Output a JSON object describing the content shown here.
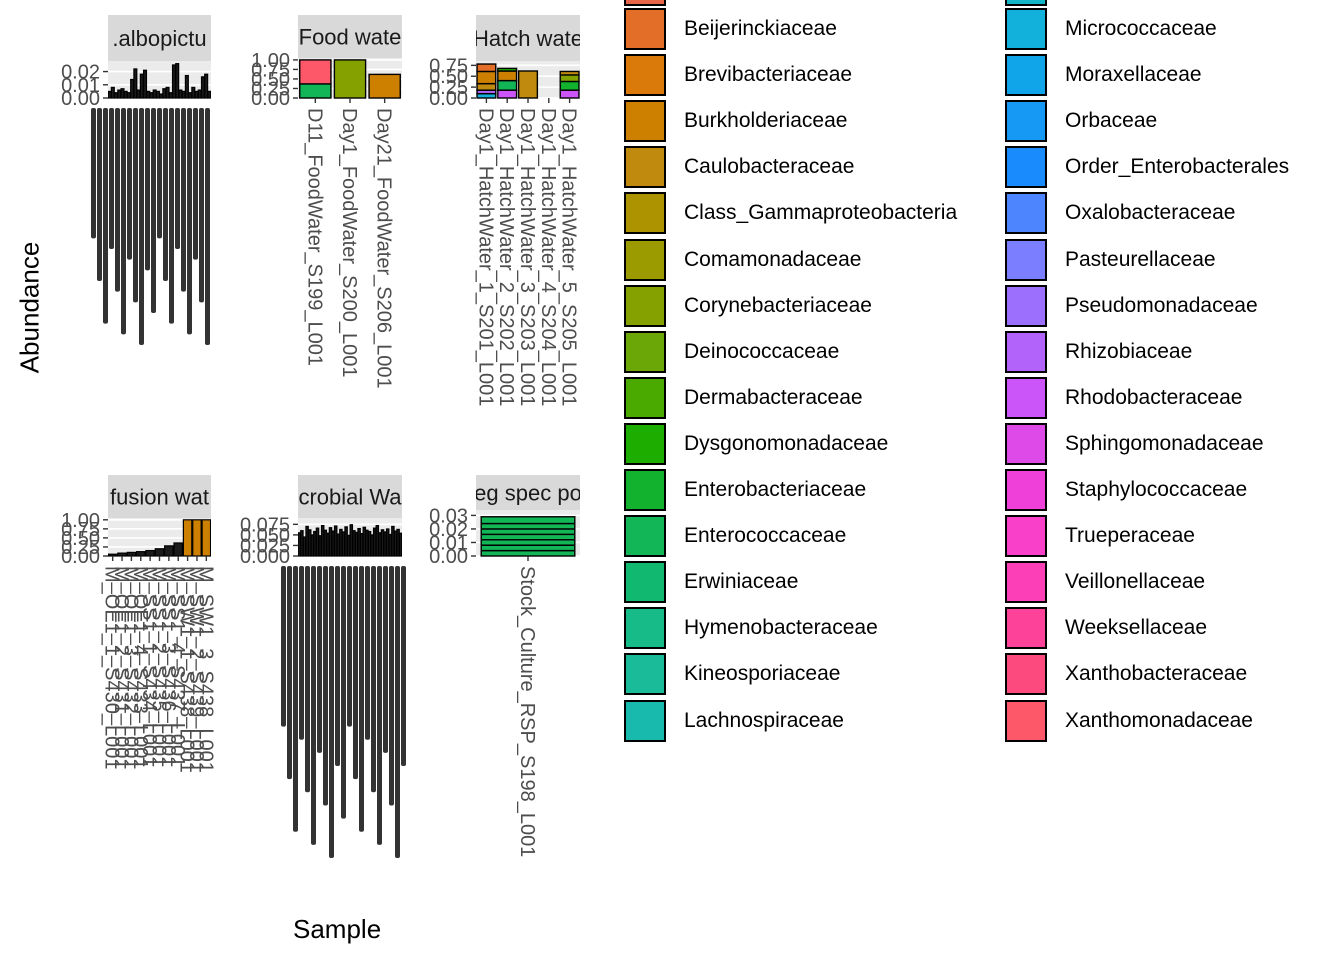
{
  "chart_data": {
    "type": "bar",
    "stacked": true,
    "faceted": true,
    "xlabel": "Sample",
    "ylabel": "Abundance",
    "grid": true,
    "legend_position": "right",
    "legend": [
      {
        "label": "Beijerinckiaceae",
        "color": "#E36E27"
      },
      {
        "label": "Brevibacteriaceae",
        "color": "#D97A0A"
      },
      {
        "label": "Burkholderiaceae",
        "color": "#CD8000"
      },
      {
        "label": "Caulobacteraceae",
        "color": "#BF8A0E"
      },
      {
        "label": "Class_Gammaproteobacteria",
        "color": "#AE9300"
      },
      {
        "label": "Comamonadaceae",
        "color": "#9B9B00"
      },
      {
        "label": "Corynebacteriaceae",
        "color": "#85A100"
      },
      {
        "label": "Deinococcaceae",
        "color": "#6AA707"
      },
      {
        "label": "Dermabacteraceae",
        "color": "#4BAA00"
      },
      {
        "label": "Dysgonomonadaceae",
        "color": "#1CAD00"
      },
      {
        "label": "Enterobacteriaceae",
        "color": "#13B22E"
      },
      {
        "label": "Enterococcaceae",
        "color": "#12B656"
      },
      {
        "label": "Erwiniaceae",
        "color": "#11B970"
      },
      {
        "label": "Hymenobacteraceae",
        "color": "#17BB88"
      },
      {
        "label": "Kineosporiaceae",
        "color": "#1ABB99"
      },
      {
        "label": "Lachnospiraceae",
        "color": "#17BAAD"
      },
      {
        "label": "Micrococcaceae",
        "color": "#12B1DB"
      },
      {
        "label": "Moraxellaceae",
        "color": "#10A5E8"
      },
      {
        "label": "Orbaceae",
        "color": "#1599F4"
      },
      {
        "label": "Order_Enterobacterales",
        "color": "#1A8BFD"
      },
      {
        "label": "Oxalobacteraceae",
        "color": "#4D85FF"
      },
      {
        "label": "Pasteurellaceae",
        "color": "#7A7EFF"
      },
      {
        "label": "Pseudomonadaceae",
        "color": "#9C6FFD"
      },
      {
        "label": "Rhizobiaceae",
        "color": "#B264FA"
      },
      {
        "label": "Rhodobacteraceae",
        "color": "#CC55F9"
      },
      {
        "label": "Sphingomonadaceae",
        "color": "#DE4AE8"
      },
      {
        "label": "Staphylococcaceae",
        "color": "#EF40D9"
      },
      {
        "label": "Trueperaceae",
        "color": "#F840C9"
      },
      {
        "label": "Veillonellaceae",
        "color": "#FC3FB7"
      },
      {
        "label": "Weeksellaceae",
        "color": "#FC4399"
      },
      {
        "label": "Xanthobacteraceae",
        "color": "#FC4A7F"
      },
      {
        "label": "Xanthomonadaceae",
        "color": "#FC5869"
      }
    ],
    "panels": [
      {
        "strip": ".albopictu",
        "yticks": [
          "0.00",
          "0.01",
          "0.02"
        ],
        "ylim": [
          0,
          0.028
        ],
        "values": [
          0.005,
          0.008,
          0.004,
          0.006,
          0.007,
          0.005,
          0.004,
          0.014,
          0.022,
          0.006,
          0.018,
          0.021,
          0.005,
          0.004,
          0.006,
          0.005,
          0.003,
          0.007,
          0.008,
          0.004,
          0.025,
          0.026,
          0.006,
          0.005,
          0.017,
          0.004,
          0.008,
          0.005,
          0.006,
          0.016,
          0.018,
          0.005
        ],
        "xlabels": []
      },
      {
        "strip": "Food wate",
        "yticks": [
          "0.00",
          "0.25",
          "0.50",
          "0.75",
          "1.00"
        ],
        "ylim": [
          0,
          1.05
        ],
        "xlabels": [
          "D11_FoodWater_S199_L001",
          "Day1_FoodWater_S200_L001",
          "Day21_FoodWater_S206_L001"
        ],
        "stacks": [
          [
            {
              "v": 0.37,
              "c": "#12B656"
            },
            {
              "v": 0.63,
              "c": "#FC5869"
            }
          ],
          [
            {
              "v": 1.0,
              "c": "#85A100"
            }
          ],
          [
            {
              "v": 0.62,
              "c": "#CD8000"
            }
          ]
        ]
      },
      {
        "strip": "Hatch wate",
        "yticks": [
          "0.00",
          "0.25",
          "0.50",
          "0.75"
        ],
        "ylim": [
          0,
          0.85
        ],
        "xlabels": [
          "Day1_HatchWater_1_S201_L001",
          "Day1_HatchWater_2_S202_L001",
          "Day1_HatchWater_3_S203_L001",
          "Day1_HatchWater_4_S204_L001",
          "Day1_HatchWater_5_S205_L001"
        ],
        "stacks": [
          [
            {
              "v": 0.1,
              "c": "#12B1DB"
            },
            {
              "v": 0.08,
              "c": "#B264FA"
            },
            {
              "v": 0.15,
              "c": "#BF8A0E"
            },
            {
              "v": 0.28,
              "c": "#CD8000"
            },
            {
              "v": 0.17,
              "c": "#E36E27"
            }
          ],
          [
            {
              "v": 0.18,
              "c": "#CC55F9"
            },
            {
              "v": 0.22,
              "c": "#12B656"
            },
            {
              "v": 0.22,
              "c": "#CD8000"
            },
            {
              "v": 0.06,
              "c": "#1CAD00"
            }
          ],
          [
            {
              "v": 0.62,
              "c": "#BF8A0E"
            }
          ],
          [],
          [
            {
              "v": 0.18,
              "c": "#CC55F9"
            },
            {
              "v": 0.2,
              "c": "#13B22E"
            },
            {
              "v": 0.15,
              "c": "#85A100"
            },
            {
              "v": 0.08,
              "c": "#BF8A0E"
            }
          ]
        ]
      },
      {
        "strip": "fusion wat",
        "yticks": [
          "0.00",
          "0.25",
          "0.50",
          "0.75",
          "1.00"
        ],
        "ylim": [
          0,
          1.05
        ],
        "values": [
          0.05,
          0.08,
          0.1,
          0.12,
          0.15,
          0.2,
          0.28,
          0.36,
          1.0,
          1.0,
          1.0
        ],
        "topcolor": "#CD8000",
        "xlabels": [
          "M_OE1_1_S430_L001",
          "M_OE1_2_S431_L001",
          "M_OE1_3_S432_L001",
          "M_OE1_4_S433_L001",
          "M_SS1_1_S434_L001",
          "M_SS1_2_S435_L001",
          "M_SS1_3_S436_L001",
          "M_SS1_4_S437_L001",
          "M_SW1_1_S438_L001",
          "M_SW1_2_S439_L001",
          "M_SW1_3_S438_L001"
        ]
      },
      {
        "strip": "crobial Wa",
        "yticks": [
          "0.000",
          "0.025",
          "0.050",
          "0.075"
        ],
        "ylim": [
          0,
          0.09
        ],
        "values": [
          0.055,
          0.06,
          0.045,
          0.07,
          0.062,
          0.05,
          0.058,
          0.066,
          0.048,
          0.072,
          0.061,
          0.054,
          0.067,
          0.059,
          0.071,
          0.052,
          0.063,
          0.057,
          0.069,
          0.049,
          0.074,
          0.06,
          0.056,
          0.065,
          0.053,
          0.068,
          0.061,
          0.058,
          0.05,
          0.066,
          0.072,
          0.055,
          0.062,
          0.057,
          0.064,
          0.051,
          0.07,
          0.059,
          0.063,
          0.054
        ],
        "xlabels": []
      },
      {
        "strip": "eg spec po",
        "yticks": [
          "0.00",
          "0.01",
          "0.02",
          "0.03"
        ],
        "ylim": [
          0,
          0.034
        ],
        "xlabels": [
          "Stock_Culture_RSP_S198_L001"
        ],
        "stacks": [
          [
            {
              "v": 0.004,
              "c": "#12B656"
            },
            {
              "v": 0.004,
              "c": "#12B656"
            },
            {
              "v": 0.004,
              "c": "#12B656"
            },
            {
              "v": 0.004,
              "c": "#12B656"
            },
            {
              "v": 0.004,
              "c": "#12B656"
            },
            {
              "v": 0.004,
              "c": "#12B656"
            },
            {
              "v": 0.005,
              "c": "#12B656"
            }
          ]
        ]
      }
    ]
  }
}
